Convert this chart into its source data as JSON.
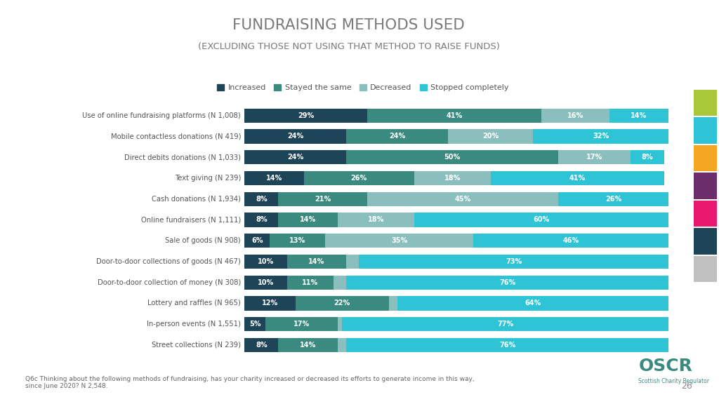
{
  "title": "FUNDRAISING METHODS USED",
  "subtitle": "(EXCLUDING THOSE NOT USING THAT METHOD TO RAISE FUNDS)",
  "categories": [
    "Use of online fundraising platforms (N 1,008)",
    "Mobile contactless donations (N 419)",
    "Direct debits donations (N 1,033)",
    "Text giving (N 239)",
    "Cash donations (N 1,934)",
    "Online fundraisers (N 1,111)",
    "Sale of goods (N 908)",
    "Door-to-door collections of goods (N 467)",
    "Door-to-door collection of money (N 308)",
    "Lottery and raffles (N 965)",
    "In-person events (N 1,551)",
    "Street collections (N 239)"
  ],
  "series": {
    "Increased": [
      29,
      24,
      24,
      14,
      8,
      8,
      6,
      10,
      10,
      12,
      5,
      8
    ],
    "Stayed the same": [
      41,
      24,
      50,
      26,
      21,
      14,
      13,
      14,
      11,
      22,
      17,
      14
    ],
    "Decreased": [
      16,
      20,
      17,
      18,
      45,
      18,
      35,
      3,
      3,
      2,
      1,
      2
    ],
    "Stopped completely": [
      14,
      32,
      8,
      41,
      26,
      60,
      46,
      73,
      76,
      64,
      77,
      76
    ]
  },
  "colors": {
    "Increased": "#1d4557",
    "Stayed the same": "#3a8a80",
    "Decreased": "#8bbfbd",
    "Stopped completely": "#2ec4d6"
  },
  "background_color": "#ffffff",
  "title_color": "#7a7a7a",
  "label_color": "#555555",
  "footer_text": "Q6c Thinking about the following methods of fundraising, has your charity increased or decreased its efforts to generate income in this way,\nsince June 2020? N 2,548.",
  "page_number": "26",
  "side_colors": [
    "#a8c83a",
    "#2ec4d6",
    "#f5a623",
    "#6b2d6b",
    "#e8196e",
    "#1d4557",
    "#c0c0c0"
  ]
}
